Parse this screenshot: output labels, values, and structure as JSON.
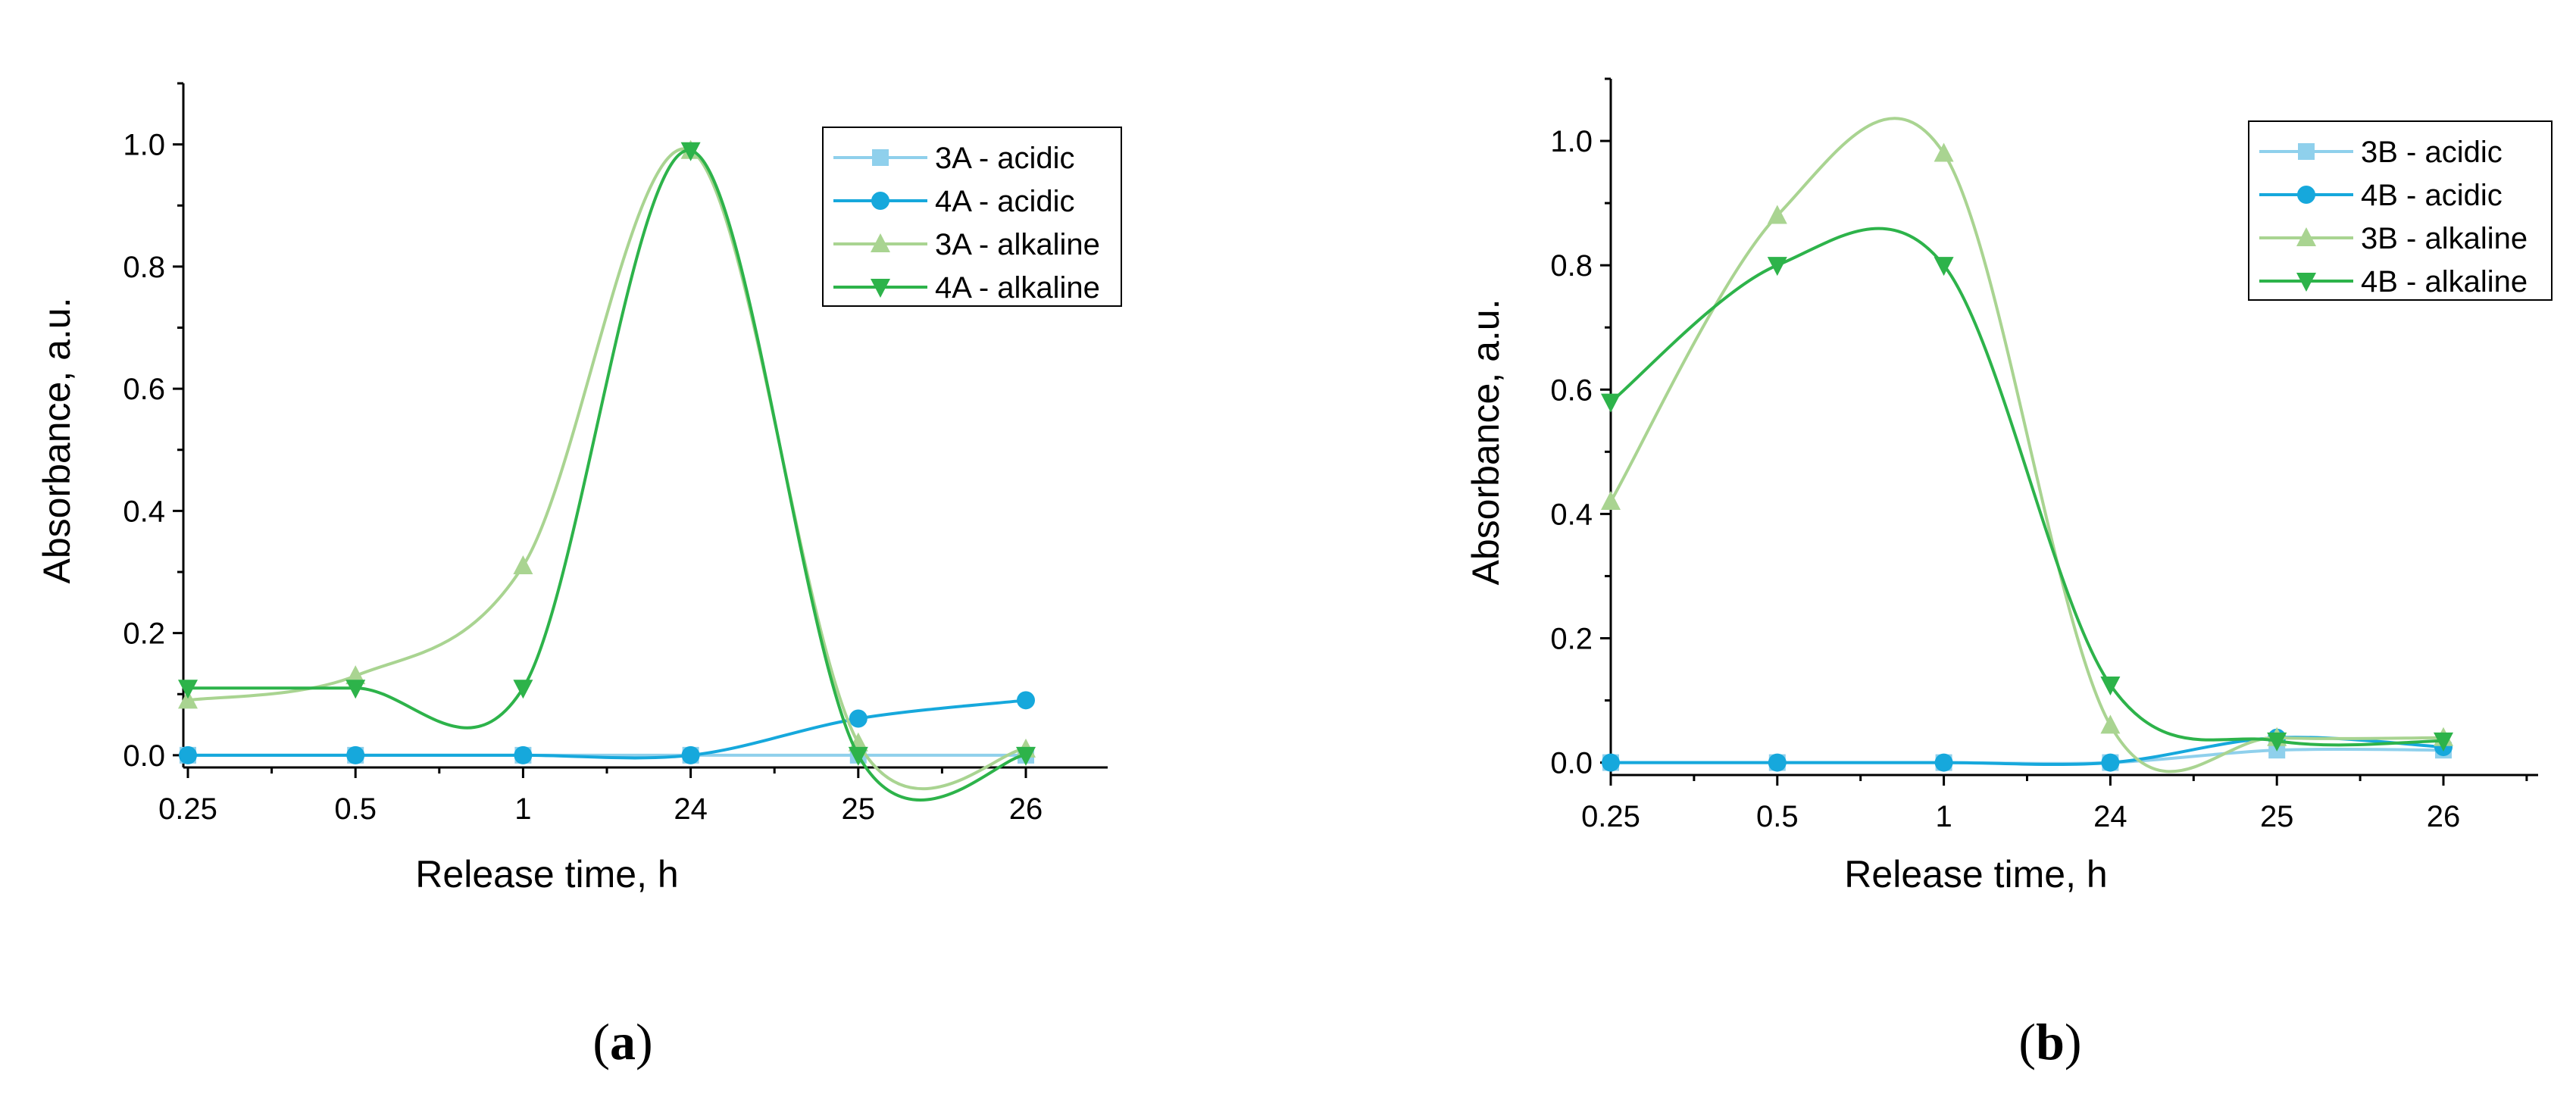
{
  "colors": {
    "acidic_3": "#8fd0ec",
    "acidic_4": "#16a8dc",
    "alkaline_3": "#a9d491",
    "alkaline_4": "#2db34a"
  },
  "chart_data": [
    {
      "type": "line",
      "panel_label_prefix": "(",
      "panel_label": "a",
      "panel_label_suffix": ")",
      "xlabel": "Release time, h",
      "ylabel": "Absorbance, a.u.",
      "categories": [
        "0.25",
        "0.5",
        "1",
        "24",
        "25",
        "26"
      ],
      "ylim": [
        -0.02,
        1.1
      ],
      "yticks": [
        "0.0",
        "0.2",
        "0.4",
        "0.6",
        "0.8",
        "1.0"
      ],
      "legend_position": "top-right",
      "series": [
        {
          "name": "3A - acidic",
          "marker": "square",
          "color_key": "acidic_3",
          "values": [
            0.0,
            0.0,
            0.0,
            0.0,
            0.0,
            0.0
          ]
        },
        {
          "name": "4A - acidic",
          "marker": "circle",
          "color_key": "acidic_4",
          "values": [
            0.0,
            0.0,
            0.0,
            0.0,
            0.06,
            0.09
          ]
        },
        {
          "name": "3A - alkaline",
          "marker": "triangle-up",
          "color_key": "alkaline_3",
          "values": [
            0.09,
            0.13,
            0.31,
            0.99,
            0.02,
            0.01
          ]
        },
        {
          "name": "4A - alkaline",
          "marker": "triangle-down",
          "color_key": "alkaline_4",
          "values": [
            0.11,
            0.11,
            0.11,
            0.99,
            0.0,
            0.0
          ]
        }
      ]
    },
    {
      "type": "line",
      "panel_label_prefix": "(",
      "panel_label": "b",
      "panel_label_suffix": ")",
      "xlabel": "Release time, h",
      "ylabel": "Absorbance, a.u.",
      "categories": [
        "0.25",
        "0.5",
        "1",
        "24",
        "25",
        "26"
      ],
      "ylim": [
        -0.02,
        1.1
      ],
      "yticks": [
        "0.0",
        "0.2",
        "0.4",
        "0.6",
        "0.8",
        "1.0"
      ],
      "legend_position": "top-right",
      "series": [
        {
          "name": "3B - acidic",
          "marker": "square",
          "color_key": "acidic_3",
          "values": [
            0.0,
            0.0,
            0.0,
            0.0,
            0.02,
            0.02
          ]
        },
        {
          "name": "4B - acidic",
          "marker": "circle",
          "color_key": "acidic_4",
          "values": [
            0.0,
            0.0,
            0.0,
            0.0,
            0.04,
            0.025
          ]
        },
        {
          "name": "3B - alkaline",
          "marker": "triangle-up",
          "color_key": "alkaline_3",
          "values": [
            0.42,
            0.88,
            0.98,
            0.06,
            0.04,
            0.04
          ]
        },
        {
          "name": "4B - alkaline",
          "marker": "triangle-down",
          "color_key": "alkaline_4",
          "values": [
            0.58,
            0.8,
            0.8,
            0.125,
            0.035,
            0.035
          ]
        }
      ]
    }
  ]
}
